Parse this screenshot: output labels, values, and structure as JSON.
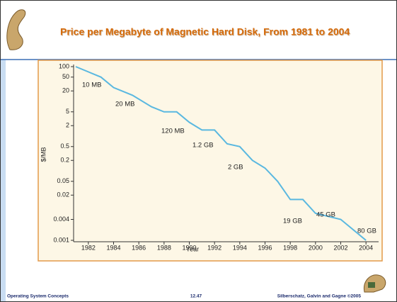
{
  "chart_data": {
    "type": "line",
    "title": "Price per Megabyte of Magnetic Hard Disk, From 1981 to 2004",
    "xlabel": "Year",
    "ylabel": "$/MB",
    "yscale": "log",
    "x": [
      1981,
      1983,
      1984,
      1985.5,
      1987,
      1988,
      1989,
      1990,
      1991,
      1992,
      1993,
      1994,
      1995,
      1996,
      1997,
      1998,
      1999,
      2000,
      2002,
      2004
    ],
    "series": [
      {
        "color": "#5ab8e0",
        "values": [
          100,
          50,
          25,
          15,
          7,
          5,
          5,
          2.5,
          1.5,
          1.5,
          0.6,
          0.5,
          0.2,
          0.12,
          0.05,
          0.015,
          0.015,
          0.006,
          0.004,
          0.001
        ]
      }
    ],
    "xlim": [
      1981,
      2005
    ],
    "ylim": [
      0.001,
      100
    ],
    "xticks": [
      1982,
      1984,
      1986,
      1988,
      1990,
      1992,
      1994,
      1996,
      1998,
      2000,
      2002,
      2004
    ],
    "yticks": [
      100,
      50,
      20,
      5,
      2,
      0.5,
      0.2,
      0.05,
      0.02,
      0.004,
      0.001
    ],
    "annotations": [
      "10 MB",
      "20 MB",
      "120 MB",
      "1.2 GB",
      "2 GB",
      "19 GB",
      "45 GB",
      "80 GB"
    ]
  },
  "footer": {
    "left": "Operating System Concepts",
    "center": "12.47",
    "right": "Silberschatz, Galvin and Gagne ©2005"
  }
}
